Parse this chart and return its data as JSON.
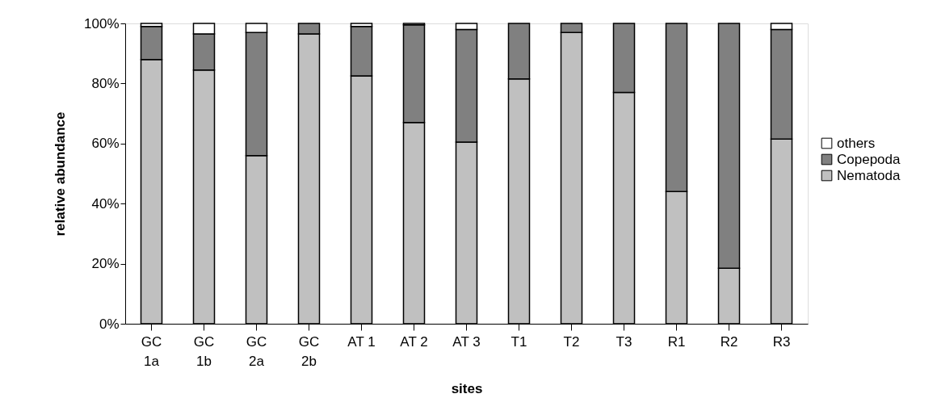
{
  "chart_data": {
    "type": "bar",
    "stacked": true,
    "xlabel": "sites",
    "ylabel": "relative abundance",
    "categories": [
      "GC 1a",
      "GC 1b",
      "GC 2a",
      "GC 2b",
      "AT 1",
      "AT 2",
      "AT 3",
      "T1",
      "T2",
      "T3",
      "R1",
      "R2",
      "R3"
    ],
    "series": [
      {
        "name": "Nematoda",
        "color": "#c0c0c0",
        "values": [
          88,
          84.5,
          56,
          96.5,
          82.5,
          67,
          60.5,
          81.5,
          97,
          77,
          44,
          18.5,
          61.5
        ]
      },
      {
        "name": "Copepoda",
        "color": "#808080",
        "values": [
          11,
          12,
          41,
          3.5,
          16.5,
          32.5,
          37.5,
          18.5,
          3,
          23,
          56,
          81.5,
          36.5
        ]
      },
      {
        "name": "others",
        "color": "#ffffff",
        "values": [
          1,
          3.5,
          3,
          0,
          1,
          0.5,
          2,
          0,
          0,
          0,
          0,
          0,
          2
        ]
      }
    ],
    "ylim": [
      0,
      100
    ],
    "yticks": [
      {
        "value": 0,
        "label": "0%"
      },
      {
        "value": 20,
        "label": "20%"
      },
      {
        "value": 40,
        "label": "40%"
      },
      {
        "value": 60,
        "label": "60%"
      },
      {
        "value": 80,
        "label": "80%"
      },
      {
        "value": 100,
        "label": "100%"
      }
    ],
    "grid": false,
    "legend": "right"
  }
}
